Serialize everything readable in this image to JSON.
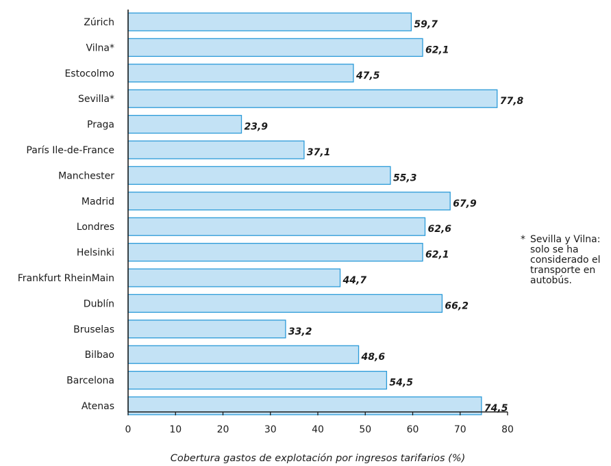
{
  "chart_data": {
    "type": "bar",
    "orientation": "horizontal",
    "categories": [
      "Zúrich",
      "Vilna*",
      "Estocolmo",
      "Sevilla*",
      "Praga",
      "París Ile-de-France",
      "Manchester",
      "Madrid",
      "Londres",
      "Helsinki",
      "Frankfurt RheinMain",
      "Dublín",
      "Bruselas",
      "Bilbao",
      "Barcelona",
      "Atenas"
    ],
    "values": [
      59.7,
      62.1,
      47.5,
      77.8,
      23.9,
      37.1,
      55.3,
      67.9,
      62.6,
      62.1,
      44.7,
      66.2,
      33.2,
      48.6,
      54.5,
      74.5
    ],
    "value_labels": [
      "59,7",
      "62,1",
      "47,5",
      "77,8",
      "23,9",
      "37,1",
      "55,3",
      "67,9",
      "62,6",
      "62,1",
      "44,7",
      "66,2",
      "33,2",
      "48,6",
      "54,5",
      "74,5"
    ],
    "xlabel": "Cobertura gastos de explotación por ingresos tarifarios (%)",
    "ylabel": "",
    "xlim": [
      0,
      80
    ],
    "xticks": [
      0,
      10,
      20,
      30,
      40,
      50,
      60,
      70,
      80
    ],
    "grid": false,
    "bar_fill": "#c3e2f5",
    "bar_stroke": "#2a9ad8"
  },
  "note": {
    "mark": "*",
    "text": "Sevilla y Vilna:\nsolo se ha\nconsiderado el\ntransporte en\nautobús."
  }
}
